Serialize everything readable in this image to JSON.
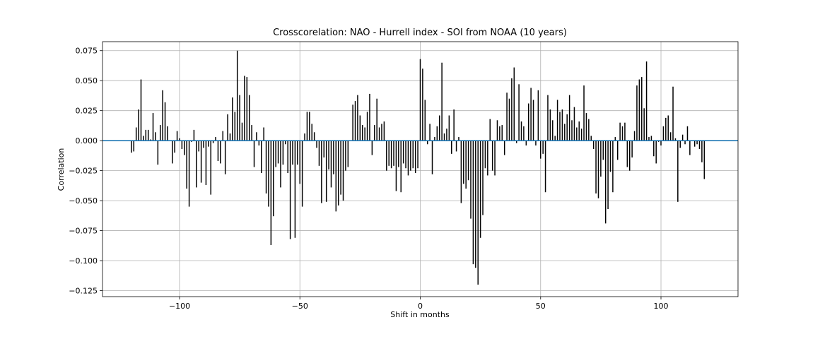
{
  "chart_data": {
    "type": "bar",
    "title": "Crosscorelation: NAO - Hurrell index - SOI from NOAA (10 years)",
    "xlabel": "Shift in months",
    "ylabel": "Correlation",
    "xlim": [
      -132,
      132
    ],
    "ylim": [
      -0.13,
      0.0825
    ],
    "xticks": [
      -100,
      -50,
      0,
      50,
      100
    ],
    "xtick_labels": [
      "−100",
      "−50",
      "0",
      "50",
      "100"
    ],
    "yticks": [
      -0.125,
      -0.1,
      -0.075,
      -0.05,
      -0.025,
      0.0,
      0.025,
      0.05,
      0.075
    ],
    "ytick_labels": [
      "−0.125",
      "−0.100",
      "−0.075",
      "−0.050",
      "−0.025",
      "0.000",
      "0.025",
      "0.050",
      "0.075"
    ],
    "grid": true,
    "bar_color": "#000000",
    "zero_line_color": "#1f77b4",
    "x_start": -120,
    "values": [
      -0.01,
      -0.009,
      0.011,
      0.026,
      0.051,
      0.004,
      0.009,
      0.009,
      0.001,
      0.023,
      0.007,
      -0.02,
      0.013,
      0.042,
      0.032,
      0.012,
      0.0,
      -0.019,
      -0.01,
      0.008,
      0.002,
      -0.007,
      -0.012,
      -0.04,
      -0.055,
      -0.001,
      0.009,
      -0.039,
      -0.009,
      -0.035,
      -0.006,
      -0.037,
      -0.005,
      -0.045,
      -0.002,
      0.003,
      -0.017,
      -0.019,
      0.008,
      -0.028,
      0.022,
      0.006,
      0.036,
      0.024,
      0.075,
      0.038,
      0.015,
      0.054,
      0.053,
      0.038,
      0.013,
      -0.022,
      0.007,
      -0.004,
      -0.027,
      0.011,
      -0.044,
      -0.055,
      -0.087,
      -0.063,
      -0.022,
      -0.019,
      -0.039,
      -0.02,
      -0.003,
      -0.027,
      -0.082,
      -0.02,
      -0.081,
      -0.02,
      -0.036,
      -0.055,
      0.006,
      0.024,
      0.024,
      0.014,
      0.007,
      -0.006,
      -0.021,
      -0.052,
      -0.014,
      -0.051,
      -0.024,
      -0.039,
      -0.028,
      -0.059,
      -0.054,
      -0.045,
      -0.05,
      -0.025,
      -0.022,
      0.0,
      0.03,
      0.033,
      0.038,
      0.021,
      0.013,
      0.011,
      0.024,
      0.039,
      -0.012,
      0.013,
      0.035,
      0.011,
      0.014,
      0.016,
      -0.025,
      -0.021,
      -0.023,
      -0.021,
      -0.042,
      -0.022,
      -0.043,
      -0.019,
      -0.023,
      -0.029,
      -0.025,
      -0.023,
      -0.027,
      -0.023,
      0.068,
      0.06,
      0.034,
      -0.003,
      0.014,
      -0.028,
      0.003,
      0.012,
      0.021,
      0.065,
      0.006,
      0.01,
      0.021,
      -0.011,
      0.026,
      -0.009,
      0.003,
      -0.052,
      -0.036,
      -0.04,
      -0.033,
      -0.065,
      -0.103,
      -0.106,
      -0.12,
      -0.081,
      -0.062,
      -0.023,
      -0.029,
      0.018,
      -0.025,
      -0.029,
      0.017,
      0.012,
      0.013,
      -0.012,
      0.04,
      0.035,
      0.052,
      0.061,
      -0.002,
      0.047,
      0.016,
      0.012,
      -0.004,
      0.031,
      0.044,
      0.034,
      -0.004,
      0.042,
      -0.015,
      -0.011,
      -0.043,
      0.038,
      0.026,
      0.017,
      0.004,
      0.034,
      0.024,
      0.026,
      0.014,
      0.022,
      0.038,
      0.017,
      0.028,
      0.011,
      0.016,
      0.01,
      0.046,
      0.023,
      0.018,
      0.004,
      -0.007,
      -0.044,
      -0.048,
      -0.03,
      -0.016,
      -0.069,
      -0.057,
      -0.026,
      -0.043,
      0.003,
      -0.016,
      0.015,
      0.012,
      0.015,
      -0.022,
      -0.025,
      -0.014,
      0.008,
      0.046,
      0.051,
      0.053,
      0.027,
      0.066,
      0.003,
      0.004,
      -0.013,
      -0.019,
      -0.001,
      -0.004,
      0.012,
      0.019,
      0.021,
      0.007,
      0.045,
      0.002,
      -0.051,
      -0.006,
      0.005,
      -0.003,
      0.012,
      -0.012,
      0.0,
      -0.005,
      -0.003,
      -0.007,
      -0.018,
      -0.032
    ]
  }
}
